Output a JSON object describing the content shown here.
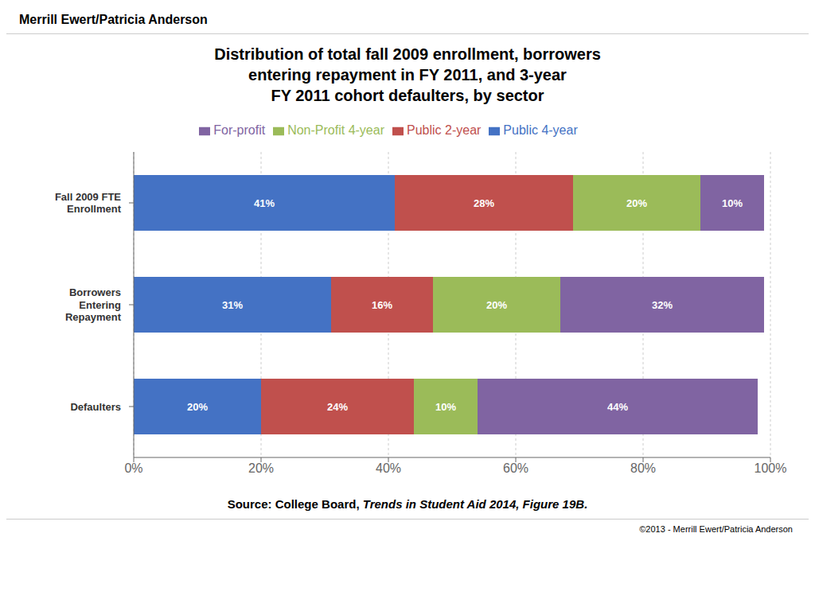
{
  "chart_data": {
    "type": "bar",
    "orientation": "horizontal",
    "stacked": true,
    "data_labels": true,
    "grid": true,
    "legend": "top",
    "title": "Distribution of total fall 2009 enrollment, borrowers\nentering repayment in FY 2011, and 3-year\nFY 2011 cohort defaulters, by sector",
    "annotations": [
      "Merrill Ewert/Patricia Anderson",
      "©2013 - Merrill Ewert/Patricia Anderson",
      "Source: College Board, ",
      "Trends in Student Aid 2014, Figure 19B."
    ],
    "categories": [
      "Fall 2009 FTE\nEnrollment",
      "Borrowers\nEntering\nRepayment",
      "Defaulters"
    ],
    "series": [
      {
        "name": "Public 4-year",
        "color": "#4472C4",
        "values": [
          41,
          31,
          20
        ],
        "value_labels": [
          "41%",
          "31%",
          "20%"
        ]
      },
      {
        "name": "Public 2-year",
        "color": "#C0504D",
        "values": [
          28,
          16,
          24
        ],
        "value_labels": [
          "28%",
          "16%",
          "24%"
        ]
      },
      {
        "name": "Non-Profit 4-year",
        "color": "#9BBB59",
        "values": [
          20,
          20,
          10
        ],
        "value_labels": [
          "20%",
          "20%",
          "10%"
        ]
      },
      {
        "name": "For-profit",
        "color": "#8064A2",
        "values": [
          10,
          32,
          44
        ],
        "value_labels": [
          "10%",
          "32%",
          "44%"
        ]
      }
    ],
    "xlim": [
      0,
      100
    ],
    "xticks": [
      {
        "value": 0,
        "label": "0%"
      },
      {
        "value": 20,
        "label": "20%"
      },
      {
        "value": 40,
        "label": "40%"
      },
      {
        "value": 60,
        "label": "60%"
      },
      {
        "value": 80,
        "label": "80%"
      },
      {
        "value": 100,
        "label": "100%"
      }
    ]
  }
}
